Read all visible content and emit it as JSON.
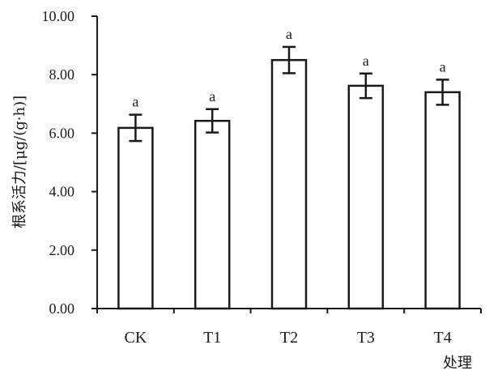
{
  "chart_data": {
    "type": "bar",
    "title": "",
    "xlabel": "处理",
    "ylabel": "根系活力/[μg/(g·h)]",
    "categories": [
      "CK",
      "T1",
      "T2",
      "T3",
      "T4"
    ],
    "values": [
      6.18,
      6.42,
      8.5,
      7.62,
      7.4
    ],
    "errors": [
      0.45,
      0.4,
      0.45,
      0.42,
      0.43
    ],
    "significance": [
      "a",
      "a",
      "a",
      "a",
      "a"
    ],
    "ylim": [
      0,
      10
    ],
    "yticks": [
      "0.00",
      "2.00",
      "4.00",
      "6.00",
      "8.00",
      "10.00"
    ],
    "grid": false,
    "colors": {
      "bar_fill": "#ffffff",
      "stroke": "#1a1a1a"
    }
  }
}
